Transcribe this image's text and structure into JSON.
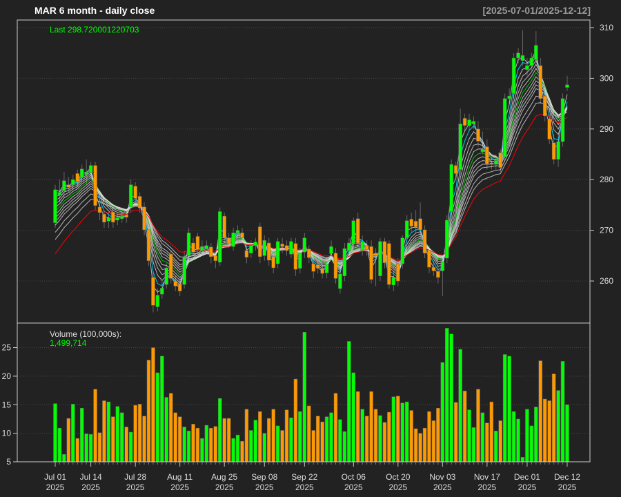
{
  "header": {
    "title": "MAR  6 month - daily close",
    "date_range": "[2025-07-01/2025-12-12]",
    "last_label": "Last 298.720001220703",
    "volume_label": "Volume (100,000s):",
    "volume_last": "1,499,714"
  },
  "colors": {
    "background": "#222222",
    "up": "#00ff00",
    "down": "#ff9900",
    "frame": "#cccccc",
    "grid": "#444444",
    "title": "#ffffff",
    "date_range": "#999999",
    "last_text": "#00ff00",
    "ma_short": "#00ccee",
    "ma_mid": "#00cc00",
    "ma_long": "#ff0000",
    "ma_ribbon": "#dddddd"
  },
  "chart_data": {
    "type": "candlestick",
    "price_axis": {
      "ticks": [
        260,
        270,
        280,
        290,
        300,
        310
      ],
      "ylim": [
        251.7,
        311.5
      ],
      "position": "right"
    },
    "volume_axis": {
      "ticks": [
        5,
        10,
        15,
        20,
        25
      ],
      "ylim": [
        5,
        29.3
      ],
      "position": "left",
      "unit": "100,000s"
    },
    "x_ticks": [
      {
        "bar": 0,
        "label": "Jul 01",
        "year": "2025"
      },
      {
        "bar": 8,
        "label": "Jul 14",
        "year": "2025"
      },
      {
        "bar": 18,
        "label": "Jul 28",
        "year": "2025"
      },
      {
        "bar": 28,
        "label": "Aug 11",
        "year": "2025"
      },
      {
        "bar": 38,
        "label": "Aug 25",
        "year": "2025"
      },
      {
        "bar": 47,
        "label": "Sep 08",
        "year": "2025"
      },
      {
        "bar": 56,
        "label": "Sep 22",
        "year": "2025"
      },
      {
        "bar": 67,
        "label": "Oct 06",
        "year": "2025"
      },
      {
        "bar": 77,
        "label": "Oct 20",
        "year": "2025"
      },
      {
        "bar": 87,
        "label": "Nov 03",
        "year": "2025"
      },
      {
        "bar": 97,
        "label": "Nov 17",
        "year": "2025"
      },
      {
        "bar": 106,
        "label": "Dec 01",
        "year": "2025"
      },
      {
        "bar": 115,
        "label": "Dec 12",
        "year": "2025"
      }
    ],
    "grid": true,
    "open": [
      271.5,
      277,
      277.8,
      279,
      279,
      281.2,
      280.5,
      281,
      281.4,
      282.8,
      274.6,
      273.2,
      271.8,
      273.6,
      272,
      272.3,
      273,
      274.6,
      278.7,
      276.7,
      274.6,
      270.1,
      260.7,
      254.9,
      257.4,
      259.3,
      265.3,
      260,
      259.4,
      259.3,
      265,
      267.5,
      268.8,
      266,
      266.4,
      266.7,
      265,
      263.7,
      272.8,
      268.5,
      266.8,
      269.5,
      269.5,
      266,
      265.5,
      267,
      270.7,
      265,
      267.5,
      264.8,
      263.4,
      267.3,
      267,
      265.3,
      267.4,
      262.5,
      265.7,
      266.3,
      263.4,
      263.2,
      262.5,
      261.6,
      265.4,
      265.5,
      258.5,
      261,
      266,
      267.4,
      272.3,
      266,
      267,
      266.8,
      265.5,
      261,
      267.8,
      267.4,
      259.2,
      263.4,
      263.4,
      268.5,
      272.2,
      271.8,
      272.3,
      270.1,
      266.1,
      262.7,
      261.9,
      262,
      264.5,
      273.7,
      282.8,
      282,
      292.1,
      290.6,
      291,
      290,
      285.5,
      286.5,
      283.3,
      283,
      285.3,
      284.5,
      296,
      297,
      304,
      303.5,
      301.7,
      302.5,
      303.7,
      302.5,
      296.5,
      292,
      287.3,
      284,
      287.5,
      298.2
    ],
    "high": [
      279,
      280,
      281.5,
      280.5,
      281,
      282,
      283,
      284,
      283.5,
      283.5,
      276,
      274,
      273.5,
      274.5,
      273.5,
      274,
      274,
      280,
      279.5,
      277.5,
      275.5,
      271,
      262,
      258.5,
      260,
      263.5,
      266,
      261,
      260.5,
      266,
      270.5,
      268.5,
      269.5,
      268,
      268,
      267.5,
      266,
      274.5,
      273.5,
      269.5,
      270.5,
      271,
      270.5,
      267,
      268,
      268.5,
      271.5,
      269,
      268.5,
      265.5,
      268.5,
      268.5,
      268,
      268.5,
      268.5,
      266.5,
      269.5,
      267,
      264.5,
      264,
      263.5,
      264.5,
      268,
      266.5,
      262.5,
      267.5,
      268.5,
      272.5,
      273.5,
      269,
      268,
      268,
      266.5,
      268.5,
      268.5,
      268,
      262,
      264.5,
      269,
      273,
      273.5,
      274,
      275.5,
      271,
      267,
      264,
      263,
      265,
      273,
      284,
      283.5,
      294,
      293,
      293,
      292.5,
      291.5,
      289.5,
      288,
      284.5,
      285,
      286,
      297,
      298,
      305,
      306,
      309.5,
      304,
      305,
      309.3,
      304,
      298,
      293,
      289,
      289,
      297,
      300.5
    ],
    "low": [
      270.5,
      275.5,
      276.5,
      277.5,
      278,
      278.5,
      279.5,
      279,
      280,
      274,
      272,
      270.5,
      270.5,
      270.5,
      271,
      271.5,
      271.5,
      273.5,
      275,
      273.5,
      269,
      263,
      253.8,
      254,
      256.5,
      258.5,
      259.5,
      258,
      257,
      258.5,
      264,
      264.5,
      265,
      265,
      265.5,
      263.5,
      262.5,
      263,
      267.5,
      266.5,
      266,
      268.5,
      267.5,
      263.5,
      264.5,
      266,
      263.5,
      264,
      263,
      261.5,
      262.5,
      265.5,
      265,
      264.5,
      261,
      261.5,
      264.5,
      263.5,
      260.5,
      261.5,
      260.5,
      260.5,
      264.5,
      259.5,
      257.5,
      260,
      265,
      266.5,
      266.5,
      265,
      265,
      259.5,
      259,
      260,
      262.5,
      258.5,
      258,
      259,
      262.5,
      267.5,
      269.5,
      269.5,
      269,
      264.5,
      261.5,
      261,
      259.5,
      257,
      263.5,
      272.5,
      280.5,
      281,
      289.5,
      289.5,
      290,
      286.5,
      285,
      282,
      282,
      282,
      281.5,
      283.5,
      295,
      296,
      303,
      302.5,
      300.5,
      301.5,
      303,
      295,
      291.5,
      287,
      283,
      282.5,
      286.5,
      297.5
    ],
    "close": [
      278,
      277.5,
      279.8,
      278.5,
      280,
      279.7,
      282.1,
      281.5,
      282.8,
      274.9,
      273.5,
      271.6,
      272.5,
      271.6,
      272.5,
      272.8,
      272.6,
      279,
      276.3,
      274.4,
      270.1,
      264,
      255.2,
      257.2,
      258.6,
      262.6,
      260.5,
      259,
      258,
      264.8,
      269.5,
      265.7,
      266.2,
      266.8,
      267,
      264.8,
      264,
      273.7,
      268.5,
      267.3,
      269.5,
      270,
      268.5,
      264.7,
      267,
      267.7,
      264.8,
      268,
      264.1,
      262.6,
      267.8,
      266.8,
      266,
      267.8,
      262.3,
      265.5,
      268.5,
      264.6,
      261.9,
      262.5,
      261.5,
      263.3,
      266.8,
      260.5,
      261.4,
      266.4,
      267.5,
      271.9,
      267.5,
      267.8,
      266.2,
      260.3,
      265,
      267.8,
      263.6,
      259.3,
      260.7,
      260,
      268.5,
      271.9,
      270.8,
      270.7,
      270.1,
      265.5,
      262.7,
      262,
      260.7,
      263.7,
      272,
      283,
      281.2,
      291,
      290.7,
      291.8,
      291.5,
      287.6,
      286,
      283.1,
      283,
      283.8,
      282.4,
      296,
      296.5,
      304,
      305,
      304.5,
      302.5,
      304,
      306.5,
      296,
      292.6,
      288,
      284,
      287.5,
      296,
      298.72
    ],
    "volume": [
      15.2,
      10.9,
      6.3,
      12.6,
      15.1,
      9.1,
      14.4,
      9.9,
      9.8,
      17.7,
      10.1,
      15.7,
      15.5,
      12.9,
      14.7,
      13.6,
      11.1,
      10.2,
      14.9,
      15.1,
      13.0,
      22.8,
      25.0,
      20.6,
      23.5,
      16.3,
      17.0,
      13.6,
      12.9,
      11.1,
      10.4,
      11.6,
      10.9,
      9.1,
      11.4,
      10.9,
      11.2,
      16.1,
      12.6,
      12.6,
      9.1,
      9.7,
      8.6,
      14.2,
      10.5,
      12.3,
      13.8,
      10.0,
      12.6,
      14.2,
      11.3,
      10.5,
      14.1,
      12.7,
      19.5,
      13.8,
      27.7,
      14.8,
      10.5,
      13.0,
      12.0,
      12.9,
      13.6,
      17.0,
      12.4,
      10.3,
      26.1,
      20.6,
      17.3,
      14.2,
      13.0,
      17.3,
      14.2,
      13.1,
      11.9,
      13.7,
      16.4,
      16.5,
      15.3,
      15.5,
      14.0,
      10.8,
      10.0,
      10.9,
      13.8,
      12.2,
      14.4,
      22.4,
      28.4,
      27.4,
      15.4,
      24.7,
      17.4,
      14.1,
      11.0,
      17.7,
      13.6,
      11.8,
      15.5,
      10.4,
      12.2,
      23.8,
      23.5,
      13.8,
      12.5,
      5.8,
      14.2,
      11.3,
      14.6,
      22.7,
      16.0,
      15.7,
      20.4,
      17.5,
      22.6,
      15.0
    ]
  }
}
